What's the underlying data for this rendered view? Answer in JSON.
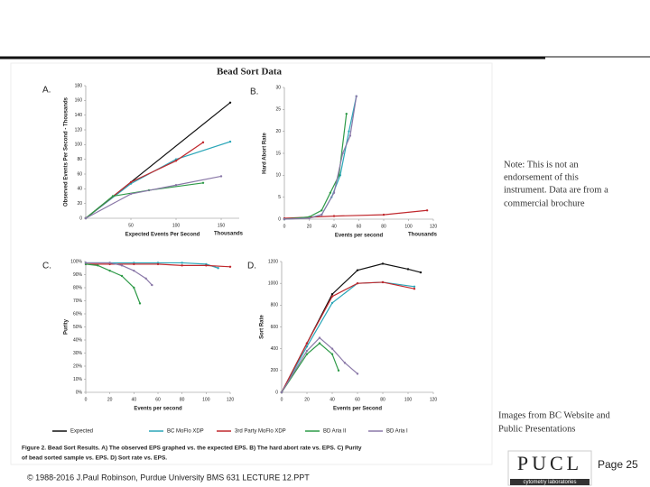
{
  "figure": {
    "title": "Bead Sort Data",
    "caption": [
      "Figure 2. Bead Sort Results. A) The observed EPS graphed vs. the expected EPS. B) The hard abort rate vs. EPS. C) Purity",
      "of bead sorted sample vs. EPS. D) Sort rate vs. EPS."
    ]
  },
  "note": [
    "Note: This is not an",
    "endorsement of this",
    "instrument. Data are from a",
    "commercial brochure"
  ],
  "source": [
    "Images from BC Website and",
    "Public Presentations"
  ],
  "footer": "© 1988-2016 J.Paul Robinson, Purdue University  BMS 631  LECTURE 12.PPT",
  "page": "Page 25",
  "logo": {
    "name": "PUCL",
    "subtitle": "cytometry laboratories"
  },
  "chart_data": [
    {
      "type": "line",
      "label": "A.",
      "xlabel": "Expected Events Per Second",
      "x_unit_label": "Thousands",
      "ylabel": "Observed Events Per Second - Thousands",
      "xlim": [
        0,
        170
      ],
      "xticks": [
        50,
        100,
        150
      ],
      "ylim": [
        0,
        180
      ],
      "yticks": [
        0,
        20,
        40,
        60,
        80,
        100,
        120,
        140,
        160,
        180
      ],
      "series": [
        {
          "name": "Expected",
          "color": "#111111",
          "x": [
            0,
            160
          ],
          "values": [
            0,
            157
          ]
        },
        {
          "name": "BC MoFlo XDP",
          "color": "#2aa6b8",
          "x": [
            0,
            50,
            100,
            160
          ],
          "values": [
            0,
            47,
            80,
            104
          ]
        },
        {
          "name": "3rd Party MoFlo XDP",
          "color": "#c0282d",
          "x": [
            0,
            50,
            100,
            130
          ],
          "values": [
            0,
            49,
            78,
            103
          ]
        },
        {
          "name": "BD Aria II",
          "color": "#2e9a48",
          "x": [
            0,
            30,
            70,
            130
          ],
          "values": [
            0,
            30,
            38,
            48
          ]
        },
        {
          "name": "BD Aria I",
          "color": "#8a78a8",
          "x": [
            0,
            50,
            100,
            150
          ],
          "values": [
            0,
            33,
            45,
            57
          ]
        }
      ]
    },
    {
      "type": "line",
      "label": "B.",
      "xlabel": "Events per second",
      "x_unit_label": "Thousands",
      "ylabel": "Hard Abort Rate",
      "xlim": [
        0,
        120
      ],
      "xticks": [
        0,
        20,
        40,
        60,
        80,
        100,
        120
      ],
      "ylim": [
        0,
        30
      ],
      "yticks": [
        0,
        5,
        10,
        15,
        20,
        25,
        30
      ],
      "series": [
        {
          "color": "#2aa6b8",
          "x": [
            0,
            20,
            30,
            38,
            45,
            52,
            58
          ],
          "values": [
            0,
            0.3,
            1,
            5,
            10,
            20,
            28
          ]
        },
        {
          "color": "#c0282d",
          "x": [
            0,
            40,
            80,
            115
          ],
          "values": [
            0.2,
            0.7,
            1,
            2
          ]
        },
        {
          "color": "#2e9a48",
          "x": [
            0,
            20,
            30,
            37,
            44,
            50
          ],
          "values": [
            0,
            0.5,
            2,
            6,
            10,
            24
          ]
        },
        {
          "color": "#8a78a8",
          "x": [
            0,
            20,
            30,
            40,
            47,
            53,
            58
          ],
          "values": [
            0,
            0.2,
            1,
            6,
            15,
            19,
            28
          ]
        }
      ]
    },
    {
      "type": "line",
      "label": "C.",
      "xlabel": "Events per second",
      "ylabel": "Purity",
      "xlim": [
        0,
        120
      ],
      "xticks": [
        0,
        20,
        40,
        60,
        80,
        100,
        120
      ],
      "ylim": [
        0,
        100
      ],
      "yticks": [
        {
          "value": 0,
          "label": "0%"
        },
        {
          "value": 10,
          "label": "10%"
        },
        {
          "value": 20,
          "label": "20%"
        },
        {
          "value": 30,
          "label": "30%"
        },
        {
          "value": 40,
          "label": "40%"
        },
        {
          "value": 50,
          "label": "50%"
        },
        {
          "value": 60,
          "label": "60%"
        },
        {
          "value": 70,
          "label": "70%"
        },
        {
          "value": 80,
          "label": "80%"
        },
        {
          "value": 90,
          "label": "90%"
        },
        {
          "value": 100,
          "label": "100%"
        }
      ],
      "series": [
        {
          "color": "#2aa6b8",
          "x": [
            0,
            20,
            40,
            60,
            80,
            100,
            110
          ],
          "values": [
            99,
            99,
            99,
            99,
            99,
            98,
            95
          ]
        },
        {
          "color": "#c0282d",
          "x": [
            0,
            20,
            40,
            60,
            80,
            100,
            120
          ],
          "values": [
            98,
            98,
            98,
            98,
            97,
            97,
            96
          ]
        },
        {
          "color": "#2e9a48",
          "x": [
            0,
            10,
            20,
            30,
            40,
            45
          ],
          "values": [
            98,
            97,
            93,
            89,
            80,
            68
          ]
        },
        {
          "color": "#8a78a8",
          "x": [
            0,
            20,
            30,
            40,
            50,
            55
          ],
          "values": [
            99,
            99,
            97,
            93,
            87,
            82
          ]
        }
      ]
    },
    {
      "type": "line",
      "label": "D.",
      "xlabel": "Events per Second",
      "ylabel": "Sort Rate",
      "xlim": [
        0,
        120
      ],
      "xticks": [
        0,
        20,
        40,
        60,
        80,
        100,
        120
      ],
      "ylim": [
        0,
        1200
      ],
      "yticks": [
        0,
        200,
        400,
        600,
        800,
        1000,
        1200
      ],
      "series": [
        {
          "color": "#111111",
          "x": [
            0,
            20,
            40,
            60,
            80,
            100,
            110
          ],
          "values": [
            0,
            450,
            900,
            1120,
            1180,
            1130,
            1100
          ]
        },
        {
          "color": "#2aa6b8",
          "x": [
            0,
            20,
            40,
            60,
            80,
            105
          ],
          "values": [
            0,
            420,
            820,
            1000,
            1010,
            970
          ]
        },
        {
          "color": "#c0282d",
          "x": [
            0,
            20,
            40,
            60,
            80,
            105
          ],
          "values": [
            0,
            450,
            880,
            1000,
            1010,
            950
          ]
        },
        {
          "color": "#2e9a48",
          "x": [
            0,
            20,
            30,
            40,
            45
          ],
          "values": [
            0,
            350,
            450,
            350,
            200
          ]
        },
        {
          "color": "#8a78a8",
          "x": [
            0,
            20,
            30,
            40,
            50,
            60
          ],
          "values": [
            0,
            380,
            500,
            400,
            270,
            170
          ]
        }
      ]
    }
  ]
}
